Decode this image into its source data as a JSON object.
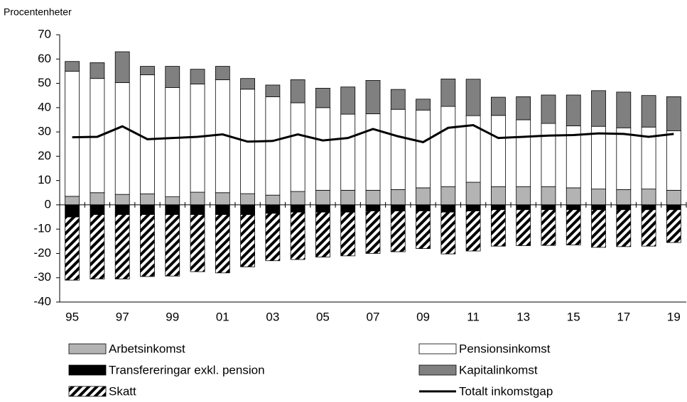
{
  "chart_data": {
    "type": "stacked-bar-line",
    "y_label": "Procentenheter",
    "categories": [
      "95",
      null,
      "97",
      null,
      "99",
      null,
      "01",
      null,
      "03",
      null,
      "05",
      null,
      "07",
      null,
      "09",
      null,
      "11",
      null,
      "13",
      null,
      "15",
      null,
      "17",
      null,
      "19"
    ],
    "ylim": [
      -40,
      70
    ],
    "yticks": [
      -40,
      -30,
      -20,
      -10,
      0,
      10,
      20,
      30,
      40,
      50,
      60,
      70
    ],
    "series": [
      {
        "name": "Arbetsinkomst",
        "type": "bar",
        "color": "#b3b3b3",
        "values": [
          3.5,
          5,
          4.3,
          4.5,
          3.3,
          5.2,
          5,
          4.6,
          4,
          5.5,
          6,
          6,
          6,
          6.3,
          7,
          7.5,
          9.3,
          7.5,
          7.5,
          7.5,
          7,
          6.5,
          6.3,
          6.5,
          6
        ]
      },
      {
        "name": "Pensionsinkomst",
        "type": "bar",
        "color": "#ffffff",
        "values": [
          51.5,
          47,
          46,
          49,
          45,
          44.5,
          46.5,
          43,
          40.5,
          36.5,
          34,
          31.3,
          31.5,
          33,
          32,
          33,
          27.4,
          29.3,
          27.5,
          26,
          25.5,
          25.8,
          25.4,
          25.5,
          24.5
        ]
      },
      {
        "name": "Transfereringar exkl. pension",
        "type": "bar",
        "color": "#000000",
        "values": [
          -5,
          -4,
          -4,
          -4,
          -4,
          -4,
          -4,
          -4,
          -3.5,
          -3,
          -3,
          -3,
          -2.5,
          -2.5,
          -2.5,
          -3,
          -2.5,
          -2,
          -2,
          -2,
          -2,
          -2,
          -2,
          -2,
          -2
        ]
      },
      {
        "name": "Kapitalinkomst",
        "type": "bar",
        "color": "#808080",
        "values": [
          4,
          6.5,
          12.7,
          3.5,
          8.7,
          6.1,
          5.5,
          4.4,
          4.8,
          9.5,
          8,
          11.2,
          13.7,
          8.2,
          4.5,
          11.3,
          15,
          7.5,
          9.5,
          11.7,
          12.7,
          14.7,
          14.7,
          13,
          14
        ]
      },
      {
        "name": "Skatt",
        "type": "bar",
        "color": "#000000",
        "pattern": "hatch",
        "values": [
          -26,
          -26.5,
          -26.5,
          -25.5,
          -25.3,
          -23.5,
          -24,
          -21.5,
          -19.5,
          -19.5,
          -18.5,
          -18,
          -17.5,
          -16.8,
          -15.5,
          -17.2,
          -16.5,
          -15,
          -14.8,
          -14.7,
          -14.5,
          -15.5,
          -15.2,
          -15,
          -13.5
        ]
      },
      {
        "name": "Totalt inkomstgap",
        "type": "line",
        "color": "#000000",
        "values": [
          27.8,
          28,
          32.3,
          27,
          27.5,
          28,
          29,
          26,
          26.3,
          29,
          26.5,
          27.5,
          31.2,
          28.2,
          25.8,
          31.7,
          32.8,
          27.5,
          28,
          28.5,
          28.7,
          29.4,
          29.2,
          28,
          29.2
        ]
      }
    ]
  }
}
